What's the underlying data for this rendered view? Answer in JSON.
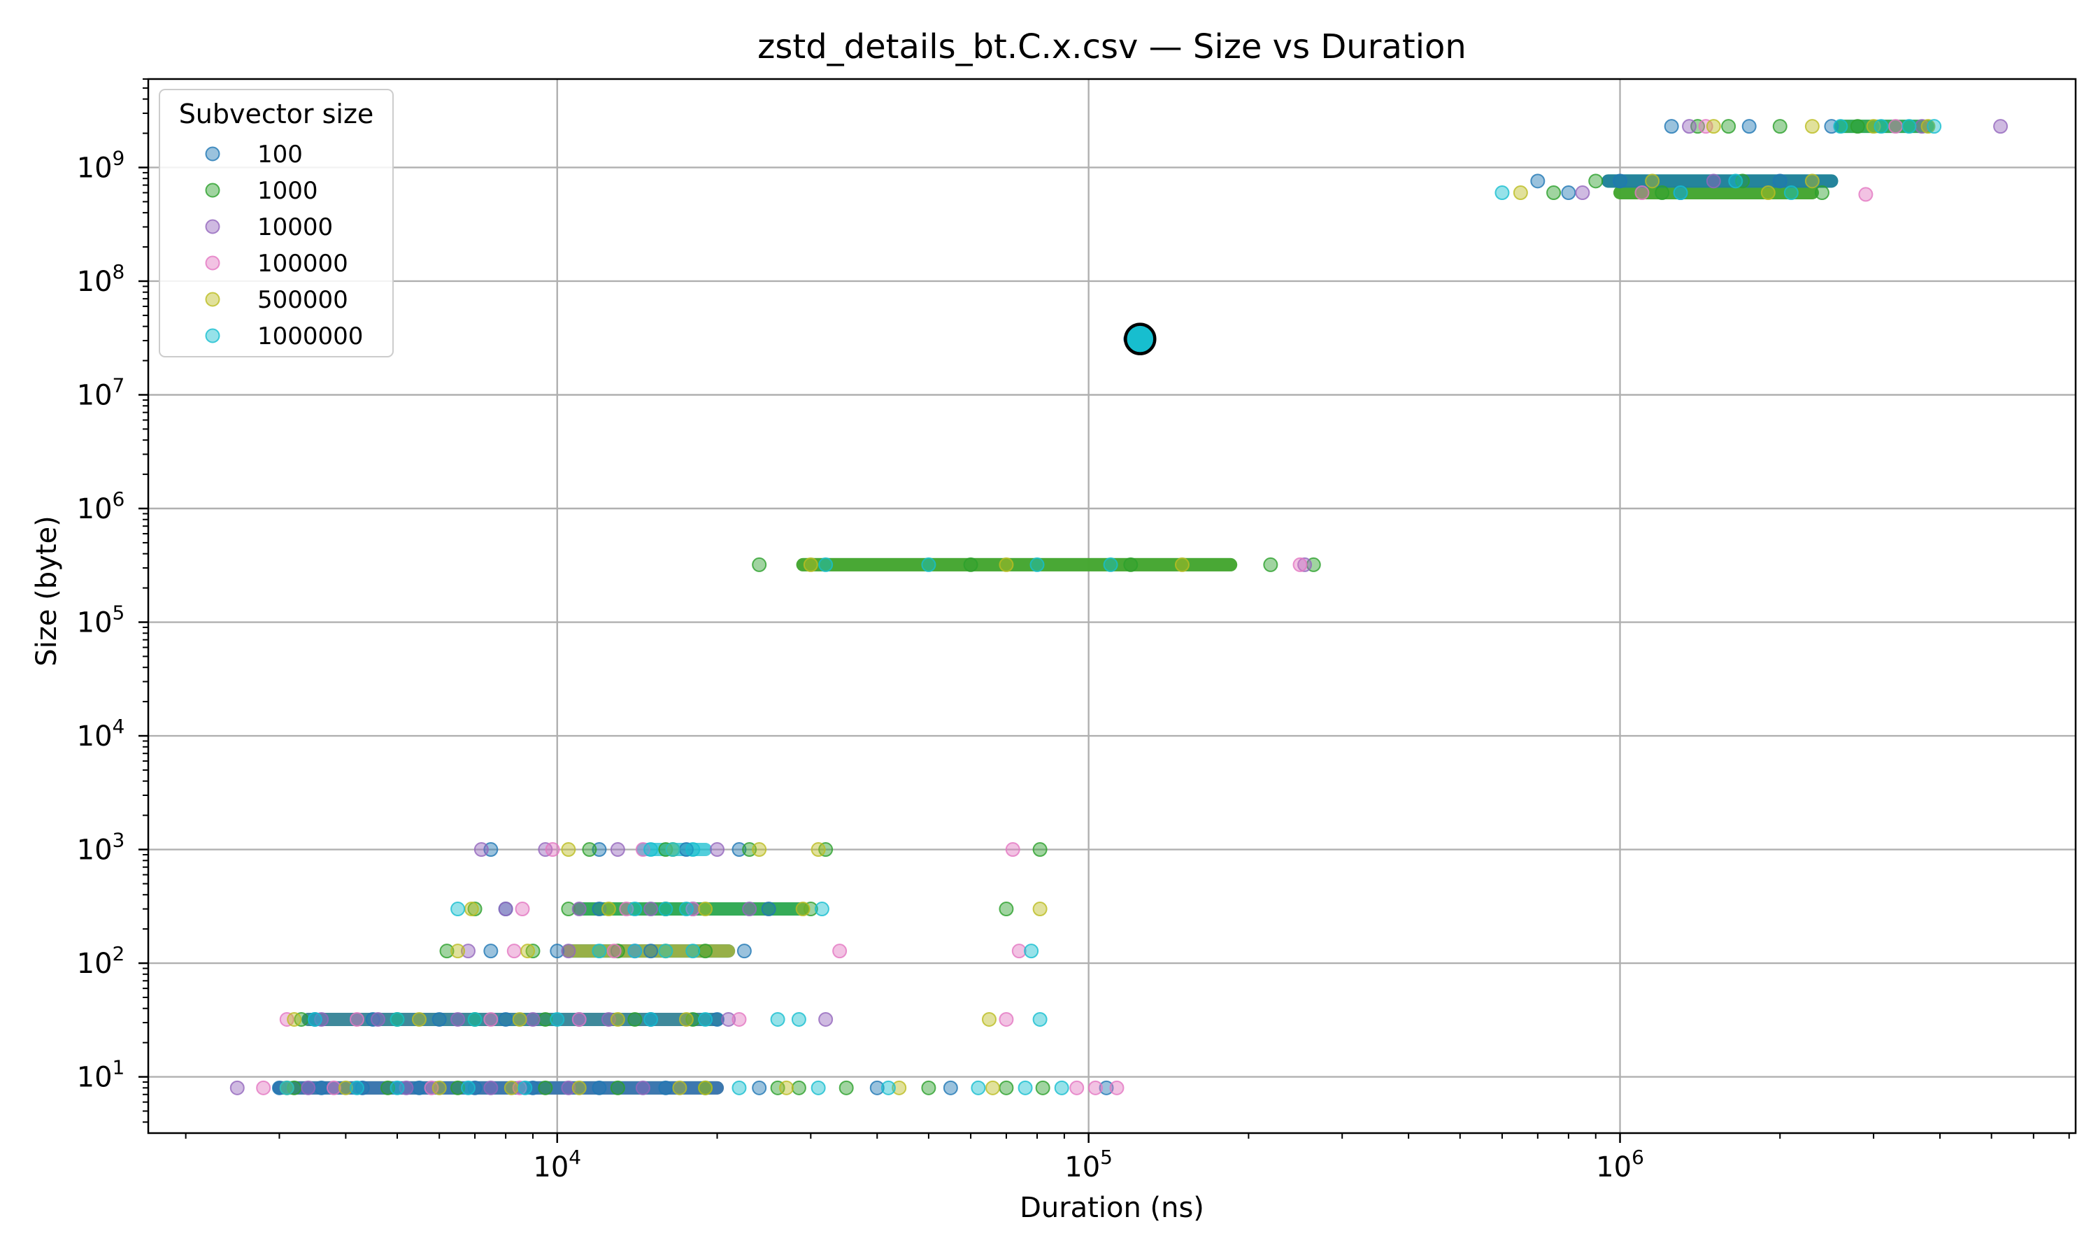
{
  "chart_data": {
    "type": "scatter",
    "title": "zstd_details_bt.C.x.csv — Size vs Duration",
    "xlabel": "Duration (ns)",
    "ylabel": "Size (byte)",
    "xscale": "log",
    "yscale": "log",
    "xlim": [
      1700,
      7200000
    ],
    "ylim": [
      3.2,
      6000000000
    ],
    "grid": true,
    "legend": {
      "title": "Subvector size",
      "placement": "top-left"
    },
    "x_ticks": [
      {
        "exp": "4",
        "value": 10000
      },
      {
        "exp": "5",
        "value": 100000
      },
      {
        "exp": "6",
        "value": 1000000
      }
    ],
    "y_ticks": [
      {
        "exp": "1",
        "value": 10
      },
      {
        "exp": "2",
        "value": 100
      },
      {
        "exp": "3",
        "value": 1000
      },
      {
        "exp": "4",
        "value": 10000
      },
      {
        "exp": "5",
        "value": 100000
      },
      {
        "exp": "6",
        "value": 1000000
      },
      {
        "exp": "7",
        "value": 10000000
      },
      {
        "exp": "8",
        "value": 100000000
      },
      {
        "exp": "9",
        "value": 1000000000
      }
    ],
    "series": [
      {
        "name": "100",
        "color": "#1f77b4",
        "points": [
          [
            3000,
            8
          ],
          [
            3600,
            8
          ],
          [
            4300,
            8
          ],
          [
            5500,
            8
          ],
          [
            7000,
            8
          ],
          [
            9000,
            8
          ],
          [
            12000,
            8
          ],
          [
            16000,
            8
          ],
          [
            24000,
            8
          ],
          [
            40000,
            8
          ],
          [
            55000,
            8
          ],
          [
            108000,
            8
          ],
          [
            3500,
            32
          ],
          [
            4500,
            32
          ],
          [
            6000,
            32
          ],
          [
            8000,
            32
          ],
          [
            11000,
            32
          ],
          [
            15000,
            32
          ],
          [
            20000,
            32
          ],
          [
            7500,
            128
          ],
          [
            10000,
            128
          ],
          [
            15000,
            128
          ],
          [
            22500,
            128
          ],
          [
            8000,
            300
          ],
          [
            12000,
            300
          ],
          [
            18000,
            300
          ],
          [
            25000,
            300
          ],
          [
            7500,
            1000
          ],
          [
            12000,
            1000
          ],
          [
            17500,
            1000
          ],
          [
            22000,
            1000
          ],
          [
            1250000,
            2300000000
          ],
          [
            1750000,
            2300000000
          ],
          [
            2500000,
            2300000000
          ],
          [
            700000,
            760000000
          ],
          [
            800000,
            600000000
          ],
          [
            1000000,
            760000000
          ],
          [
            1300000,
            600000000
          ],
          [
            2000000,
            760000000
          ],
          [
            120000,
            31000000
          ]
        ]
      },
      {
        "name": "1000",
        "color": "#2ca02c",
        "points": [
          [
            3200,
            8
          ],
          [
            4800,
            8
          ],
          [
            6500,
            8
          ],
          [
            9500,
            8
          ],
          [
            13000,
            8
          ],
          [
            19000,
            8
          ],
          [
            26000,
            8
          ],
          [
            28500,
            8
          ],
          [
            35000,
            8
          ],
          [
            50000,
            8
          ],
          [
            70000,
            8
          ],
          [
            82000,
            8
          ],
          [
            3300,
            32
          ],
          [
            5000,
            32
          ],
          [
            7000,
            32
          ],
          [
            9500,
            32
          ],
          [
            14000,
            32
          ],
          [
            18000,
            32
          ],
          [
            6200,
            128
          ],
          [
            9000,
            128
          ],
          [
            13000,
            128
          ],
          [
            19000,
            128
          ],
          [
            7000,
            300
          ],
          [
            10500,
            300
          ],
          [
            16000,
            300
          ],
          [
            30000,
            300
          ],
          [
            70000,
            300
          ],
          [
            11500,
            1000
          ],
          [
            16000,
            1000
          ],
          [
            23000,
            1000
          ],
          [
            32000,
            1000
          ],
          [
            81000,
            1000
          ],
          [
            24000,
            320000
          ],
          [
            60000,
            320000
          ],
          [
            120000,
            320000
          ],
          [
            220000,
            320000
          ],
          [
            265000,
            320000
          ],
          [
            1400000,
            2300000000
          ],
          [
            1600000,
            2300000000
          ],
          [
            2000000,
            2300000000
          ],
          [
            2800000,
            2300000000
          ],
          [
            750000,
            600000000
          ],
          [
            900000,
            760000000
          ],
          [
            1200000,
            600000000
          ],
          [
            1700000,
            760000000
          ],
          [
            2400000,
            600000000
          ]
        ]
      },
      {
        "name": "10000",
        "color": "#9467bd",
        "points": [
          [
            2500,
            8
          ],
          [
            3400,
            8
          ],
          [
            5200,
            8
          ],
          [
            7500,
            8
          ],
          [
            10500,
            8
          ],
          [
            14500,
            8
          ],
          [
            3600,
            32
          ],
          [
            4600,
            32
          ],
          [
            6500,
            32
          ],
          [
            9000,
            32
          ],
          [
            12500,
            32
          ],
          [
            21000,
            32
          ],
          [
            32000,
            32
          ],
          [
            6800,
            128
          ],
          [
            10500,
            128
          ],
          [
            14000,
            128
          ],
          [
            8000,
            300
          ],
          [
            11000,
            300
          ],
          [
            15000,
            300
          ],
          [
            23000,
            300
          ],
          [
            7200,
            1000
          ],
          [
            9500,
            1000
          ],
          [
            13000,
            1000
          ],
          [
            20000,
            1000
          ],
          [
            255000,
            320000
          ],
          [
            1350000,
            2300000000
          ],
          [
            3700000,
            2300000000
          ],
          [
            5200000,
            2300000000
          ],
          [
            850000,
            600000000
          ],
          [
            1500000,
            760000000
          ]
        ]
      },
      {
        "name": "100000",
        "color": "#e377c2",
        "points": [
          [
            2800,
            8
          ],
          [
            3800,
            8
          ],
          [
            5800,
            8
          ],
          [
            8500,
            8
          ],
          [
            95000,
            8
          ],
          [
            103000,
            8
          ],
          [
            113000,
            8
          ],
          [
            3100,
            32
          ],
          [
            4200,
            32
          ],
          [
            7500,
            32
          ],
          [
            11000,
            32
          ],
          [
            22000,
            32
          ],
          [
            70000,
            32
          ],
          [
            8300,
            128
          ],
          [
            12800,
            128
          ],
          [
            34000,
            128
          ],
          [
            74000,
            128
          ],
          [
            8600,
            300
          ],
          [
            13500,
            300
          ],
          [
            18000,
            300
          ],
          [
            9800,
            1000
          ],
          [
            14500,
            1000
          ],
          [
            72000,
            1000
          ],
          [
            250000,
            320000
          ],
          [
            1450000,
            2300000000
          ],
          [
            3300000,
            2300000000
          ],
          [
            1100000,
            600000000
          ],
          [
            2900000,
            580000000
          ]
        ]
      },
      {
        "name": "500000",
        "color": "#bcbd22",
        "points": [
          [
            3100,
            8
          ],
          [
            4000,
            8
          ],
          [
            6000,
            8
          ],
          [
            8200,
            8
          ],
          [
            11000,
            8
          ],
          [
            17000,
            8
          ],
          [
            19000,
            8
          ],
          [
            27000,
            8
          ],
          [
            44000,
            8
          ],
          [
            66000,
            8
          ],
          [
            3200,
            32
          ],
          [
            5500,
            32
          ],
          [
            8500,
            32
          ],
          [
            13000,
            32
          ],
          [
            17500,
            32
          ],
          [
            65000,
            32
          ],
          [
            6500,
            128
          ],
          [
            8800,
            128
          ],
          [
            16000,
            128
          ],
          [
            6900,
            300
          ],
          [
            12500,
            300
          ],
          [
            19000,
            300
          ],
          [
            29000,
            300
          ],
          [
            81000,
            300
          ],
          [
            10500,
            1000
          ],
          [
            16500,
            1000
          ],
          [
            24000,
            1000
          ],
          [
            31000,
            1000
          ],
          [
            30000,
            320000
          ],
          [
            70000,
            320000
          ],
          [
            150000,
            320000
          ],
          [
            1500000,
            2300000000
          ],
          [
            2300000,
            2300000000
          ],
          [
            3000000,
            2300000000
          ],
          [
            3800000,
            2300000000
          ],
          [
            650000,
            600000000
          ],
          [
            1150000,
            760000000
          ],
          [
            1900000,
            600000000
          ],
          [
            2300000,
            760000000
          ]
        ]
      },
      {
        "name": "1000000",
        "color": "#17becf",
        "points": [
          [
            3100,
            8
          ],
          [
            4200,
            8
          ],
          [
            5000,
            8
          ],
          [
            6800,
            8
          ],
          [
            8700,
            8
          ],
          [
            22000,
            8
          ],
          [
            31000,
            8
          ],
          [
            42000,
            8
          ],
          [
            62000,
            8
          ],
          [
            76000,
            8
          ],
          [
            89000,
            8
          ],
          [
            3500,
            32
          ],
          [
            5000,
            32
          ],
          [
            7000,
            32
          ],
          [
            10000,
            32
          ],
          [
            15000,
            32
          ],
          [
            19000,
            32
          ],
          [
            26000,
            32
          ],
          [
            28500,
            32
          ],
          [
            81000,
            32
          ],
          [
            12000,
            128
          ],
          [
            14000,
            128
          ],
          [
            16000,
            128
          ],
          [
            18000,
            128
          ],
          [
            78000,
            128
          ],
          [
            6500,
            300
          ],
          [
            14000,
            300
          ],
          [
            16000,
            300
          ],
          [
            17500,
            300
          ],
          [
            31500,
            300
          ],
          [
            15000,
            1000
          ],
          [
            16500,
            1000
          ],
          [
            18000,
            1000
          ],
          [
            32000,
            320000
          ],
          [
            50000,
            320000
          ],
          [
            80000,
            320000
          ],
          [
            110000,
            320000
          ],
          [
            2600000,
            2300000000
          ],
          [
            3100000,
            2300000000
          ],
          [
            3500000,
            2300000000
          ],
          [
            3900000,
            2300000000
          ],
          [
            600000,
            600000000
          ],
          [
            1300000,
            600000000
          ],
          [
            1650000,
            760000000
          ],
          [
            2100000,
            600000000
          ]
        ]
      }
    ],
    "bands": [
      {
        "series": [
          "1000000",
          "500000",
          "10000",
          "100"
        ],
        "x_from": 3000,
        "x_to": 20000,
        "y": 8
      },
      {
        "series": [
          "1000000",
          "500000",
          "100"
        ],
        "x_from": 3400,
        "x_to": 20000,
        "y": 32
      },
      {
        "series": [
          "1000000",
          "100",
          "500000"
        ],
        "x_from": 10500,
        "x_to": 21000,
        "y": 128
      },
      {
        "series": [
          "1000000",
          "1000"
        ],
        "x_from": 11000,
        "x_to": 29000,
        "y": 300
      },
      {
        "series": [
          "1000000"
        ],
        "x_from": 14500,
        "x_to": 19000,
        "y": 1000
      },
      {
        "series": [
          "1000000",
          "500000",
          "1000"
        ],
        "x_from": 29000,
        "x_to": 185000,
        "y": 320000
      },
      {
        "series": [
          "1000000",
          "500000",
          "1000"
        ],
        "x_from": 1000000,
        "x_to": 2300000,
        "y": 600000000
      },
      {
        "series": [
          "1000000",
          "1000",
          "100"
        ],
        "x_from": 950000,
        "x_to": 2500000,
        "y": 760000000
      },
      {
        "series": [
          "1000000",
          "1000"
        ],
        "x_from": 2600000,
        "x_to": 3800000,
        "y": 2300000000
      }
    ],
    "highlight": {
      "x": 125000,
      "y": 31000000,
      "color": "#17becf"
    }
  }
}
